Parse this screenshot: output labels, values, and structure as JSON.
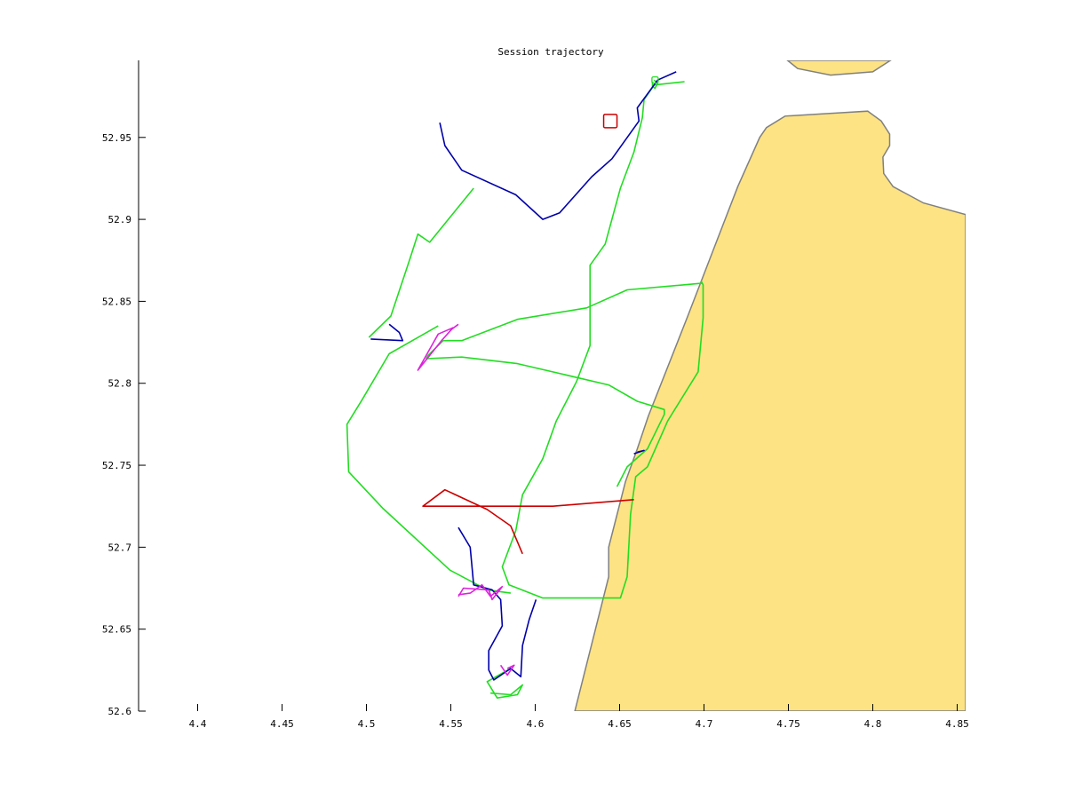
{
  "chart_data": {
    "type": "line",
    "title": "Session trajectory",
    "xlabel": "",
    "ylabel": "",
    "xlim": [
      4.365,
      4.855
    ],
    "ylim": [
      52.6,
      52.997
    ],
    "x_ticks": [
      4.4,
      4.45,
      4.5,
      4.55,
      4.6,
      4.65,
      4.7,
      4.75,
      4.8,
      4.85
    ],
    "x_tick_labels": [
      "4.4",
      "4.45",
      "4.5",
      "4.55",
      "4.6",
      "4.65",
      "4.7",
      "4.75",
      "4.8",
      "4.85"
    ],
    "y_ticks": [
      52.6,
      52.65,
      52.7,
      52.75,
      52.8,
      52.85,
      52.9,
      52.95
    ],
    "y_tick_labels": [
      "52.6",
      "52.65",
      "52.7",
      "52.75",
      "52.8",
      "52.85",
      "52.9",
      "52.95"
    ],
    "grid": false,
    "colors": {
      "land": "#fde383",
      "coast": "#808080",
      "green": "#22dd22",
      "blue": "#0000aa",
      "red": "#cc0000",
      "magenta": "#dd22dd",
      "axis": "#000000"
    },
    "land": [
      {
        "name": "mainland",
        "points": [
          [
            4.6235,
            52.6
          ],
          [
            4.6435,
            52.682
          ],
          [
            4.6435,
            52.7
          ],
          [
            4.6535,
            52.74
          ],
          [
            4.6605,
            52.76
          ],
          [
            4.667,
            52.78
          ],
          [
            4.69,
            52.84
          ],
          [
            4.705,
            52.88
          ],
          [
            4.72,
            52.92
          ],
          [
            4.733,
            52.95
          ],
          [
            4.737,
            52.956
          ],
          [
            4.748,
            52.963
          ],
          [
            4.78,
            52.965
          ],
          [
            4.797,
            52.966
          ],
          [
            4.805,
            52.96
          ],
          [
            4.81,
            52.952
          ],
          [
            4.81,
            52.945
          ],
          [
            4.806,
            52.938
          ],
          [
            4.8065,
            52.928
          ],
          [
            4.812,
            52.92
          ],
          [
            4.83,
            52.91
          ],
          [
            4.855,
            52.903
          ],
          [
            4.855,
            52.6
          ]
        ]
      },
      {
        "name": "island",
        "points": [
          [
            4.7495,
            52.997
          ],
          [
            4.7555,
            52.992
          ],
          [
            4.775,
            52.988
          ],
          [
            4.8,
            52.99
          ],
          [
            4.8105,
            52.997
          ]
        ]
      }
    ],
    "series": [
      {
        "color": "green",
        "points": [
          [
            4.6705,
            52.985
          ],
          [
            4.6725,
            52.983
          ],
          [
            4.671,
            52.98
          ],
          [
            4.6695,
            52.981
          ],
          [
            4.6695,
            52.984
          ]
        ]
      },
      {
        "color": "green",
        "points": [
          [
            4.6885,
            52.984
          ],
          [
            4.6705,
            52.982
          ],
          [
            4.6645,
            52.973
          ],
          [
            4.6635,
            52.962
          ],
          [
            4.6585,
            52.941
          ],
          [
            4.6505,
            52.919
          ],
          [
            4.6415,
            52.885
          ],
          [
            4.6325,
            52.872
          ],
          [
            4.6325,
            52.848
          ],
          [
            4.6325,
            52.823
          ],
          [
            4.6245,
            52.801
          ],
          [
            4.6125,
            52.777
          ],
          [
            4.6045,
            52.754
          ],
          [
            4.5925,
            52.732
          ],
          [
            4.5885,
            52.71
          ],
          [
            4.5805,
            52.688
          ],
          [
            4.5845,
            52.677
          ],
          [
            4.6045,
            52.669
          ],
          [
            4.6505,
            52.669
          ],
          [
            4.6545,
            52.682
          ],
          [
            4.6565,
            52.72
          ],
          [
            4.6595,
            52.743
          ],
          [
            4.6665,
            52.749
          ],
          [
            4.6785,
            52.777
          ],
          [
            4.6965,
            52.807
          ],
          [
            4.6995,
            52.84
          ],
          [
            4.6995,
            52.86
          ],
          [
            4.6985,
            52.862
          ],
          [
            4.6985,
            52.861
          ],
          [
            4.6545,
            52.857
          ],
          [
            4.6305,
            52.846
          ],
          [
            4.5895,
            52.839
          ],
          [
            4.5565,
            52.826
          ],
          [
            4.5455,
            52.826
          ],
          [
            4.5365,
            52.817
          ],
          [
            4.5355,
            52.815
          ],
          [
            4.5565,
            52.816
          ],
          [
            4.5895,
            52.812
          ],
          [
            4.6435,
            52.799
          ],
          [
            4.6605,
            52.789
          ],
          [
            4.6765,
            52.784
          ],
          [
            4.6765,
            52.781
          ],
          [
            4.6665,
            52.76
          ],
          [
            4.6545,
            52.749
          ],
          [
            4.6485,
            52.737
          ]
        ]
      },
      {
        "color": "green",
        "points": [
          [
            4.5635,
            52.919
          ],
          [
            4.5375,
            52.886
          ],
          [
            4.5305,
            52.891
          ],
          [
            4.5255,
            52.875
          ],
          [
            4.5145,
            52.841
          ],
          [
            4.5015,
            52.828
          ]
        ]
      },
      {
        "color": "green",
        "points": [
          [
            4.5425,
            52.835
          ],
          [
            4.5135,
            52.818
          ],
          [
            4.4975,
            52.79
          ],
          [
            4.4885,
            52.775
          ],
          [
            4.4895,
            52.746
          ],
          [
            4.5095,
            52.724
          ],
          [
            4.5495,
            52.686
          ],
          [
            4.5715,
            52.674
          ],
          [
            4.5855,
            52.672
          ]
        ]
      },
      {
        "color": "green",
        "points": [
          [
            4.5855,
            52.626
          ],
          [
            4.5715,
            52.618
          ],
          [
            4.5775,
            52.608
          ],
          [
            4.5895,
            52.61
          ],
          [
            4.5925,
            52.616
          ],
          [
            4.5855,
            52.61
          ],
          [
            4.5735,
            52.611
          ]
        ]
      },
      {
        "color": "blue",
        "points": [
          [
            4.6835,
            52.99
          ],
          [
            4.6725,
            52.985
          ],
          [
            4.6605,
            52.968
          ],
          [
            4.6615,
            52.96
          ],
          [
            4.6455,
            52.937
          ],
          [
            4.6335,
            52.926
          ],
          [
            4.6145,
            52.904
          ],
          [
            4.6045,
            52.9
          ],
          [
            4.5885,
            52.915
          ],
          [
            4.5565,
            52.93
          ],
          [
            4.5465,
            52.945
          ],
          [
            4.5435,
            52.959
          ]
        ]
      },
      {
        "color": "blue",
        "points": [
          [
            4.5135,
            52.836
          ],
          [
            4.5195,
            52.831
          ],
          [
            4.5215,
            52.826
          ],
          [
            4.5025,
            52.827
          ]
        ]
      },
      {
        "color": "blue",
        "points": [
          [
            4.6585,
            52.757
          ],
          [
            4.6645,
            52.759
          ],
          [
            4.6605,
            52.758
          ]
        ]
      },
      {
        "color": "blue",
        "points": [
          [
            4.5545,
            52.712
          ],
          [
            4.5615,
            52.7
          ],
          [
            4.5635,
            52.677
          ],
          [
            4.5745,
            52.674
          ],
          [
            4.5795,
            52.668
          ],
          [
            4.5805,
            52.652
          ],
          [
            4.5725,
            52.637
          ],
          [
            4.5725,
            52.625
          ],
          [
            4.5755,
            52.619
          ],
          [
            4.5855,
            52.626
          ],
          [
            4.5915,
            52.621
          ],
          [
            4.5925,
            52.64
          ],
          [
            4.5965,
            52.656
          ],
          [
            4.6005,
            52.668
          ]
        ]
      },
      {
        "color": "magenta",
        "points": [
          [
            4.5545,
            52.836
          ],
          [
            4.5505,
            52.833
          ],
          [
            4.5445,
            52.826
          ],
          [
            4.5305,
            52.808
          ],
          [
            4.5425,
            52.83
          ],
          [
            4.5515,
            52.834
          ]
        ]
      },
      {
        "color": "magenta",
        "points": [
          [
            4.5545,
            52.67
          ],
          [
            4.5575,
            52.675
          ],
          [
            4.5725,
            52.674
          ],
          [
            4.5745,
            52.668
          ],
          [
            4.5805,
            52.676
          ],
          [
            4.5735,
            52.67
          ],
          [
            4.5685,
            52.677
          ],
          [
            4.5615,
            52.672
          ],
          [
            4.5545,
            52.671
          ]
        ]
      },
      {
        "color": "magenta",
        "points": [
          [
            4.5795,
            52.628
          ],
          [
            4.5835,
            52.622
          ],
          [
            4.5875,
            52.628
          ],
          [
            4.5835,
            52.626
          ]
        ]
      },
      {
        "color": "red",
        "points": [
          [
            4.6585,
            52.729
          ],
          [
            4.6105,
            52.725
          ],
          [
            4.5495,
            52.725
          ],
          [
            4.5335,
            52.725
          ],
          [
            4.5465,
            52.735
          ],
          [
            4.5715,
            52.723
          ],
          [
            4.5855,
            52.713
          ],
          [
            4.5925,
            52.696
          ]
        ]
      }
    ],
    "markers": [
      {
        "shape": "square",
        "color": "red",
        "x": 4.6445,
        "y": 52.96
      },
      {
        "shape": "square",
        "color": "green",
        "x": 4.671,
        "y": 52.985
      }
    ]
  }
}
